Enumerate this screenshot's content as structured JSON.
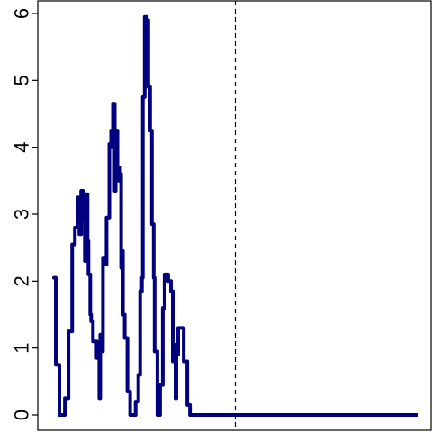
{
  "chart_data": {
    "type": "line",
    "title": "",
    "xlabel": "",
    "ylabel": "",
    "ylim": [
      0,
      6
    ],
    "xlim": [
      0,
      400
    ],
    "y_ticks": [
      "0",
      "1",
      "2",
      "3",
      "4",
      "5",
      "6"
    ],
    "x_ticks_shown": false,
    "grid": false,
    "legend": "none",
    "line_color": "#00007F",
    "vline_style": "dashed",
    "vline_color": "#000000",
    "vline_x": 200,
    "series": [
      {
        "values": [
          [
            0,
            2.05
          ],
          [
            2,
            2.05
          ],
          [
            2,
            0.75
          ],
          [
            6,
            0.75
          ],
          [
            6,
            0.0
          ],
          [
            12,
            0.0
          ],
          [
            12,
            0.25
          ],
          [
            16,
            0.25
          ],
          [
            16,
            1.25
          ],
          [
            20,
            1.25
          ],
          [
            20,
            2.55
          ],
          [
            23,
            2.55
          ],
          [
            23,
            2.8
          ],
          [
            26,
            2.8
          ],
          [
            26,
            3.25
          ],
          [
            28,
            3.25
          ],
          [
            28,
            2.7
          ],
          [
            30,
            2.7
          ],
          [
            30,
            3.35
          ],
          [
            32,
            3.35
          ],
          [
            32,
            2.9
          ],
          [
            34,
            2.9
          ],
          [
            34,
            2.3
          ],
          [
            35,
            2.3
          ],
          [
            35,
            3.3
          ],
          [
            37,
            3.3
          ],
          [
            37,
            2.6
          ],
          [
            38,
            2.6
          ],
          [
            38,
            2.1
          ],
          [
            40,
            2.1
          ],
          [
            40,
            1.5
          ],
          [
            41,
            1.5
          ],
          [
            41,
            1.4
          ],
          [
            43,
            1.4
          ],
          [
            43,
            1.1
          ],
          [
            47,
            1.1
          ],
          [
            47,
            0.85
          ],
          [
            50,
            0.85
          ],
          [
            50,
            0.25
          ],
          [
            51,
            0.25
          ],
          [
            51,
            1.2
          ],
          [
            52,
            1.2
          ],
          [
            52,
            0.95
          ],
          [
            54,
            0.95
          ],
          [
            54,
            2.35
          ],
          [
            56,
            2.35
          ],
          [
            56,
            2.25
          ],
          [
            58,
            2.25
          ],
          [
            58,
            2.95
          ],
          [
            61,
            2.95
          ],
          [
            61,
            4.05
          ],
          [
            63,
            4.05
          ],
          [
            63,
            4.25
          ],
          [
            64,
            4.25
          ],
          [
            64,
            4.0
          ],
          [
            65,
            4.0
          ],
          [
            65,
            4.65
          ],
          [
            67,
            4.65
          ],
          [
            67,
            3.35
          ],
          [
            68,
            3.35
          ],
          [
            68,
            4.25
          ],
          [
            70,
            4.25
          ],
          [
            70,
            3.5
          ],
          [
            71,
            3.5
          ],
          [
            71,
            3.7
          ],
          [
            73,
            3.7
          ],
          [
            73,
            3.6
          ],
          [
            74,
            3.6
          ],
          [
            74,
            2.2
          ],
          [
            75,
            2.2
          ],
          [
            75,
            2.45
          ],
          [
            76,
            2.45
          ],
          [
            76,
            1.5
          ],
          [
            78,
            1.5
          ],
          [
            78,
            1.15
          ],
          [
            81,
            1.15
          ],
          [
            81,
            0.35
          ],
          [
            82,
            0.35
          ],
          [
            82,
            0.35
          ],
          [
            84,
            0.35
          ],
          [
            84,
            0.0
          ],
          [
            90,
            0.0
          ],
          [
            90,
            0.2
          ],
          [
            93,
            0.2
          ],
          [
            93,
            0.6
          ],
          [
            95,
            0.6
          ],
          [
            95,
            1.85
          ],
          [
            97,
            1.85
          ],
          [
            97,
            2.05
          ],
          [
            98,
            2.05
          ],
          [
            98,
            4.75
          ],
          [
            100,
            4.75
          ],
          [
            100,
            5.95
          ],
          [
            102,
            5.95
          ],
          [
            102,
            5.9
          ],
          [
            104,
            5.9
          ],
          [
            104,
            4.9
          ],
          [
            106,
            4.9
          ],
          [
            106,
            4.25
          ],
          [
            108,
            4.25
          ],
          [
            108,
            2.85
          ],
          [
            110,
            2.85
          ],
          [
            110,
            2.05
          ],
          [
            111,
            2.05
          ],
          [
            111,
            0.95
          ],
          [
            114,
            0.95
          ],
          [
            114,
            0.0
          ],
          [
            115,
            0.0
          ],
          [
            115,
            0.45
          ],
          [
            116,
            0.45
          ],
          [
            116,
            0.0
          ],
          [
            117,
            0.0
          ],
          [
            117,
            0.45
          ],
          [
            120,
            0.45
          ],
          [
            120,
            1.6
          ],
          [
            122,
            1.6
          ],
          [
            122,
            2.1
          ],
          [
            126,
            2.1
          ],
          [
            126,
            2.0
          ],
          [
            129,
            2.0
          ],
          [
            129,
            1.85
          ],
          [
            131,
            1.85
          ],
          [
            131,
            0.8
          ],
          [
            132,
            0.8
          ],
          [
            132,
            1.05
          ],
          [
            134,
            1.05
          ],
          [
            134,
            0.25
          ],
          [
            135,
            0.25
          ],
          [
            135,
            0.9
          ],
          [
            137,
            0.9
          ],
          [
            137,
            1.3
          ],
          [
            143,
            1.3
          ],
          [
            143,
            0.8
          ],
          [
            147,
            0.8
          ],
          [
            147,
            0.15
          ],
          [
            150,
            0.15
          ],
          [
            150,
            0.0
          ],
          [
            160,
            0.0
          ],
          [
            200,
            0.0
          ],
          [
            400,
            0.0
          ]
        ]
      }
    ]
  }
}
